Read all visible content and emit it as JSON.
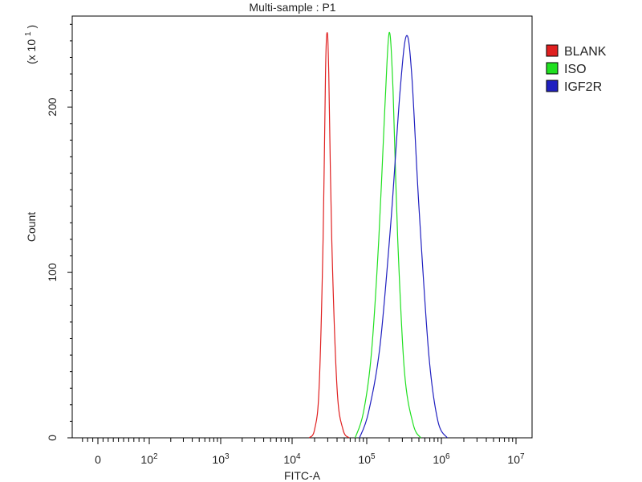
{
  "chart_data": {
    "type": "line",
    "title": "Multi-sample : P1",
    "xlabel": "FITC-A",
    "ylabel": "Count",
    "y_multiplier_label": "(x 10",
    "y_multiplier_exp": "1",
    "y_multiplier_close": ")",
    "xscale": "biexponential",
    "xlim": [
      -400,
      10000000
    ],
    "ylim": [
      0,
      25.5
    ],
    "grid": false,
    "legend_position": "top-right",
    "x_ticks": [
      {
        "base": "0",
        "exp": ""
      },
      {
        "base": "10",
        "exp": "2"
      },
      {
        "base": "10",
        "exp": "3"
      },
      {
        "base": "10",
        "exp": "4"
      },
      {
        "base": "10",
        "exp": "5"
      },
      {
        "base": "10",
        "exp": "6"
      },
      {
        "base": "10",
        "exp": "7"
      }
    ],
    "y_ticks": [
      "0",
      "100",
      "200"
    ],
    "series": [
      {
        "name": "BLANK",
        "color": "#e02020",
        "points": [
          [
            17000,
            0
          ],
          [
            20000,
            0.5
          ],
          [
            23000,
            3
          ],
          [
            26000,
            12
          ],
          [
            28000,
            22
          ],
          [
            29500,
            24.5
          ],
          [
            31000,
            22
          ],
          [
            34000,
            12
          ],
          [
            40000,
            3
          ],
          [
            48000,
            0.5
          ],
          [
            58000,
            0
          ]
        ]
      },
      {
        "name": "ISO",
        "color": "#20e020",
        "points": [
          [
            70000,
            0
          ],
          [
            90000,
            1.5
          ],
          [
            115000,
            5
          ],
          [
            145000,
            12
          ],
          [
            175000,
            20
          ],
          [
            200000,
            24.5
          ],
          [
            225000,
            21
          ],
          [
            260000,
            12
          ],
          [
            320000,
            4
          ],
          [
            420000,
            0.8
          ],
          [
            530000,
            0
          ]
        ]
      },
      {
        "name": "IGF2R",
        "color": "#2020c0",
        "points": [
          [
            80000,
            0
          ],
          [
            105000,
            1.5
          ],
          [
            150000,
            5.5
          ],
          [
            210000,
            13
          ],
          [
            280000,
            21
          ],
          [
            340000,
            24.3
          ],
          [
            400000,
            22
          ],
          [
            500000,
            14
          ],
          [
            680000,
            5
          ],
          [
            900000,
            1
          ],
          [
            1200000,
            0
          ]
        ]
      }
    ]
  }
}
